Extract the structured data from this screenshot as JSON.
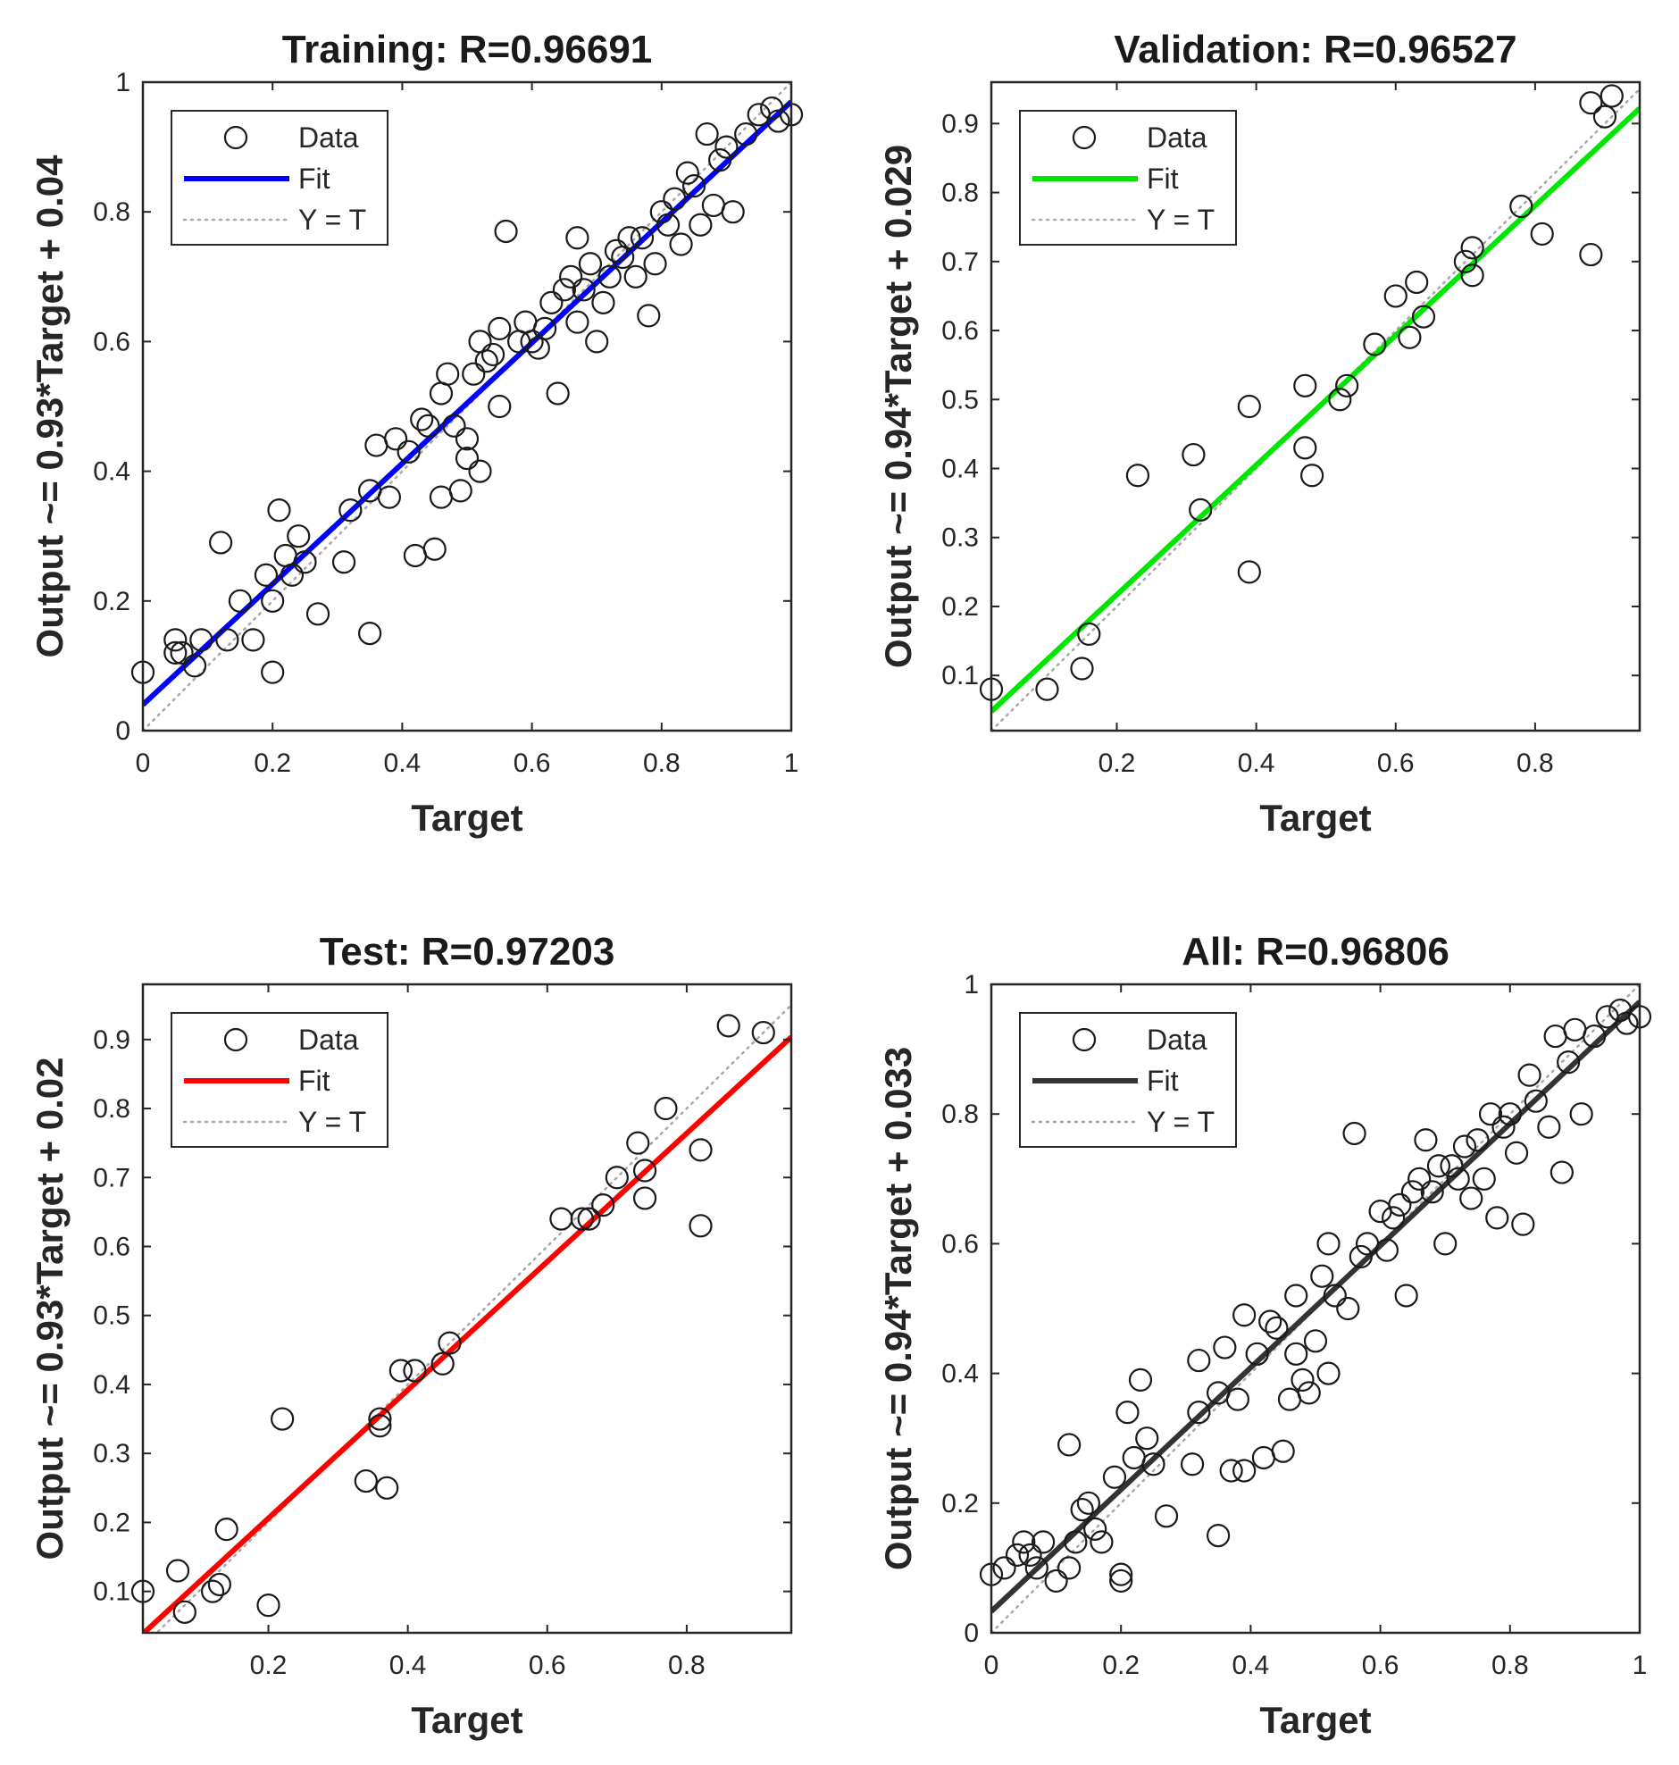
{
  "chart_data": [
    {
      "type": "scatter",
      "title": "Training: R=0.96691",
      "xlabel": "Target",
      "ylabel": "Output ~= 0.93*Target + 0.04",
      "xlim": [
        0,
        1
      ],
      "ylim": [
        0,
        1
      ],
      "xticks": [
        0,
        0.2,
        0.4,
        0.6,
        0.8,
        1
      ],
      "xtick_labels": [
        "0",
        "0.2",
        "0.4",
        "0.6",
        "0.8",
        "1"
      ],
      "yticks": [
        0,
        0.2,
        0.4,
        0.6,
        0.8,
        1
      ],
      "ytick_labels": [
        "0",
        "0.2",
        "0.4",
        "0.6",
        "0.8",
        "1"
      ],
      "fit": {
        "slope": 0.93,
        "intercept": 0.04,
        "color": "#0000ff"
      },
      "legend": {
        "position": "top-left",
        "entries": [
          "Data",
          "Fit",
          "Y = T"
        ]
      },
      "series": [
        {
          "name": "Data",
          "points": [
            [
              0.0,
              0.09
            ],
            [
              0.05,
              0.12
            ],
            [
              0.05,
              0.14
            ],
            [
              0.06,
              0.12
            ],
            [
              0.08,
              0.1
            ],
            [
              0.09,
              0.14
            ],
            [
              0.12,
              0.29
            ],
            [
              0.13,
              0.14
            ],
            [
              0.15,
              0.2
            ],
            [
              0.17,
              0.14
            ],
            [
              0.19,
              0.24
            ],
            [
              0.2,
              0.09
            ],
            [
              0.2,
              0.2
            ],
            [
              0.21,
              0.34
            ],
            [
              0.22,
              0.27
            ],
            [
              0.23,
              0.24
            ],
            [
              0.24,
              0.3
            ],
            [
              0.25,
              0.26
            ],
            [
              0.27,
              0.18
            ],
            [
              0.31,
              0.26
            ],
            [
              0.32,
              0.34
            ],
            [
              0.35,
              0.15
            ],
            [
              0.35,
              0.37
            ],
            [
              0.36,
              0.44
            ],
            [
              0.38,
              0.36
            ],
            [
              0.39,
              0.45
            ],
            [
              0.41,
              0.43
            ],
            [
              0.42,
              0.27
            ],
            [
              0.43,
              0.48
            ],
            [
              0.44,
              0.47
            ],
            [
              0.45,
              0.28
            ],
            [
              0.46,
              0.36
            ],
            [
              0.46,
              0.52
            ],
            [
              0.47,
              0.55
            ],
            [
              0.48,
              0.47
            ],
            [
              0.49,
              0.37
            ],
            [
              0.5,
              0.42
            ],
            [
              0.5,
              0.45
            ],
            [
              0.51,
              0.55
            ],
            [
              0.52,
              0.6
            ],
            [
              0.52,
              0.4
            ],
            [
              0.53,
              0.57
            ],
            [
              0.54,
              0.58
            ],
            [
              0.55,
              0.5
            ],
            [
              0.55,
              0.62
            ],
            [
              0.56,
              0.77
            ],
            [
              0.58,
              0.6
            ],
            [
              0.59,
              0.63
            ],
            [
              0.6,
              0.6
            ],
            [
              0.61,
              0.59
            ],
            [
              0.62,
              0.62
            ],
            [
              0.63,
              0.66
            ],
            [
              0.64,
              0.52
            ],
            [
              0.65,
              0.68
            ],
            [
              0.66,
              0.7
            ],
            [
              0.67,
              0.76
            ],
            [
              0.67,
              0.63
            ],
            [
              0.68,
              0.68
            ],
            [
              0.69,
              0.72
            ],
            [
              0.7,
              0.6
            ],
            [
              0.71,
              0.66
            ],
            [
              0.72,
              0.7
            ],
            [
              0.73,
              0.74
            ],
            [
              0.74,
              0.73
            ],
            [
              0.75,
              0.76
            ],
            [
              0.76,
              0.7
            ],
            [
              0.77,
              0.76
            ],
            [
              0.78,
              0.64
            ],
            [
              0.79,
              0.72
            ],
            [
              0.8,
              0.8
            ],
            [
              0.81,
              0.78
            ],
            [
              0.82,
              0.82
            ],
            [
              0.83,
              0.75
            ],
            [
              0.84,
              0.86
            ],
            [
              0.85,
              0.84
            ],
            [
              0.86,
              0.78
            ],
            [
              0.87,
              0.92
            ],
            [
              0.88,
              0.81
            ],
            [
              0.89,
              0.88
            ],
            [
              0.9,
              0.9
            ],
            [
              0.91,
              0.8
            ],
            [
              0.93,
              0.92
            ],
            [
              0.95,
              0.95
            ],
            [
              0.97,
              0.96
            ],
            [
              0.98,
              0.94
            ],
            [
              1.0,
              0.95
            ]
          ]
        }
      ]
    },
    {
      "type": "scatter",
      "title": "Validation: R=0.96527",
      "xlabel": "Target",
      "ylabel": "Output ~= 0.94*Target + 0.029",
      "xlim": [
        0.02,
        0.95
      ],
      "ylim": [
        0.02,
        0.96
      ],
      "xticks": [
        0.2,
        0.4,
        0.6,
        0.8
      ],
      "xtick_labels": [
        "0.2",
        "0.4",
        "0.6",
        "0.8"
      ],
      "yticks": [
        0.1,
        0.2,
        0.3,
        0.4,
        0.5,
        0.6,
        0.7,
        0.8,
        0.9
      ],
      "ytick_labels": [
        "0.1",
        "0.2",
        "0.3",
        "0.4",
        "0.5",
        "0.6",
        "0.7",
        "0.8",
        "0.9"
      ],
      "fit": {
        "slope": 0.94,
        "intercept": 0.029,
        "color": "#00e600"
      },
      "legend": {
        "position": "top-left",
        "entries": [
          "Data",
          "Fit",
          "Y = T"
        ]
      },
      "series": [
        {
          "name": "Data",
          "points": [
            [
              0.02,
              0.08
            ],
            [
              0.1,
              0.08
            ],
            [
              0.15,
              0.11
            ],
            [
              0.16,
              0.16
            ],
            [
              0.23,
              0.39
            ],
            [
              0.31,
              0.42
            ],
            [
              0.32,
              0.34
            ],
            [
              0.39,
              0.49
            ],
            [
              0.39,
              0.25
            ],
            [
              0.47,
              0.43
            ],
            [
              0.47,
              0.52
            ],
            [
              0.48,
              0.39
            ],
            [
              0.52,
              0.5
            ],
            [
              0.53,
              0.52
            ],
            [
              0.57,
              0.58
            ],
            [
              0.6,
              0.65
            ],
            [
              0.62,
              0.59
            ],
            [
              0.63,
              0.67
            ],
            [
              0.64,
              0.62
            ],
            [
              0.7,
              0.7
            ],
            [
              0.71,
              0.72
            ],
            [
              0.71,
              0.68
            ],
            [
              0.78,
              0.78
            ],
            [
              0.81,
              0.74
            ],
            [
              0.88,
              0.93
            ],
            [
              0.9,
              0.91
            ],
            [
              0.91,
              0.94
            ],
            [
              0.88,
              0.71
            ]
          ]
        }
      ]
    },
    {
      "type": "scatter",
      "title": "Test: R=0.97203",
      "xlabel": "Target",
      "ylabel": "Output ~= 0.93*Target + 0.02",
      "xlim": [
        0.02,
        0.95
      ],
      "ylim": [
        0.04,
        0.98
      ],
      "xticks": [
        0.2,
        0.4,
        0.6,
        0.8
      ],
      "xtick_labels": [
        "0.2",
        "0.4",
        "0.6",
        "0.8"
      ],
      "yticks": [
        0.1,
        0.2,
        0.3,
        0.4,
        0.5,
        0.6,
        0.7,
        0.8,
        0.9
      ],
      "ytick_labels": [
        "0.1",
        "0.2",
        "0.3",
        "0.4",
        "0.5",
        "0.6",
        "0.7",
        "0.8",
        "0.9"
      ],
      "fit": {
        "slope": 0.93,
        "intercept": 0.02,
        "color": "#ff0000"
      },
      "legend": {
        "position": "top-left",
        "entries": [
          "Data",
          "Fit",
          "Y = T"
        ]
      },
      "series": [
        {
          "name": "Data",
          "points": [
            [
              0.02,
              0.1
            ],
            [
              0.07,
              0.13
            ],
            [
              0.08,
              0.07
            ],
            [
              0.12,
              0.1
            ],
            [
              0.13,
              0.11
            ],
            [
              0.14,
              0.19
            ],
            [
              0.2,
              0.08
            ],
            [
              0.22,
              0.35
            ],
            [
              0.34,
              0.26
            ],
            [
              0.36,
              0.34
            ],
            [
              0.36,
              0.35
            ],
            [
              0.37,
              0.25
            ],
            [
              0.39,
              0.42
            ],
            [
              0.41,
              0.42
            ],
            [
              0.45,
              0.43
            ],
            [
              0.46,
              0.46
            ],
            [
              0.62,
              0.64
            ],
            [
              0.65,
              0.64
            ],
            [
              0.66,
              0.64
            ],
            [
              0.68,
              0.66
            ],
            [
              0.7,
              0.7
            ],
            [
              0.73,
              0.75
            ],
            [
              0.74,
              0.67
            ],
            [
              0.74,
              0.71
            ],
            [
              0.77,
              0.8
            ],
            [
              0.82,
              0.63
            ],
            [
              0.82,
              0.74
            ],
            [
              0.86,
              0.92
            ],
            [
              0.91,
              0.91
            ]
          ]
        }
      ]
    },
    {
      "type": "scatter",
      "title": "All: R=0.96806",
      "xlabel": "Target",
      "ylabel": "Output ~= 0.94*Target + 0.033",
      "xlim": [
        0,
        1
      ],
      "ylim": [
        0,
        1
      ],
      "xticks": [
        0,
        0.2,
        0.4,
        0.6,
        0.8,
        1
      ],
      "xtick_labels": [
        "0",
        "0.2",
        "0.4",
        "0.6",
        "0.8",
        "1"
      ],
      "yticks": [
        0,
        0.2,
        0.4,
        0.6,
        0.8,
        1
      ],
      "ytick_labels": [
        "0",
        "0.2",
        "0.4",
        "0.6",
        "0.8",
        "1"
      ],
      "fit": {
        "slope": 0.94,
        "intercept": 0.033,
        "color": "#333333"
      },
      "legend": {
        "position": "top-left",
        "entries": [
          "Data",
          "Fit",
          "Y = T"
        ]
      },
      "series": [
        {
          "name": "Data",
          "points": [
            [
              0.0,
              0.09
            ],
            [
              0.02,
              0.1
            ],
            [
              0.04,
              0.12
            ],
            [
              0.05,
              0.14
            ],
            [
              0.06,
              0.12
            ],
            [
              0.07,
              0.1
            ],
            [
              0.08,
              0.14
            ],
            [
              0.1,
              0.08
            ],
            [
              0.12,
              0.29
            ],
            [
              0.12,
              0.1
            ],
            [
              0.13,
              0.14
            ],
            [
              0.14,
              0.19
            ],
            [
              0.15,
              0.2
            ],
            [
              0.16,
              0.16
            ],
            [
              0.17,
              0.14
            ],
            [
              0.19,
              0.24
            ],
            [
              0.2,
              0.09
            ],
            [
              0.2,
              0.08
            ],
            [
              0.21,
              0.34
            ],
            [
              0.22,
              0.27
            ],
            [
              0.23,
              0.39
            ],
            [
              0.24,
              0.3
            ],
            [
              0.25,
              0.26
            ],
            [
              0.27,
              0.18
            ],
            [
              0.31,
              0.26
            ],
            [
              0.32,
              0.42
            ],
            [
              0.32,
              0.34
            ],
            [
              0.35,
              0.15
            ],
            [
              0.35,
              0.37
            ],
            [
              0.36,
              0.44
            ],
            [
              0.37,
              0.25
            ],
            [
              0.38,
              0.36
            ],
            [
              0.39,
              0.49
            ],
            [
              0.39,
              0.25
            ],
            [
              0.41,
              0.43
            ],
            [
              0.42,
              0.27
            ],
            [
              0.43,
              0.48
            ],
            [
              0.44,
              0.47
            ],
            [
              0.45,
              0.28
            ],
            [
              0.46,
              0.36
            ],
            [
              0.47,
              0.52
            ],
            [
              0.47,
              0.43
            ],
            [
              0.48,
              0.39
            ],
            [
              0.49,
              0.37
            ],
            [
              0.5,
              0.45
            ],
            [
              0.51,
              0.55
            ],
            [
              0.52,
              0.6
            ],
            [
              0.52,
              0.4
            ],
            [
              0.53,
              0.52
            ],
            [
              0.55,
              0.5
            ],
            [
              0.56,
              0.77
            ],
            [
              0.57,
              0.58
            ],
            [
              0.58,
              0.6
            ],
            [
              0.6,
              0.65
            ],
            [
              0.61,
              0.59
            ],
            [
              0.62,
              0.64
            ],
            [
              0.63,
              0.66
            ],
            [
              0.64,
              0.52
            ],
            [
              0.65,
              0.68
            ],
            [
              0.66,
              0.7
            ],
            [
              0.67,
              0.76
            ],
            [
              0.68,
              0.68
            ],
            [
              0.69,
              0.72
            ],
            [
              0.7,
              0.6
            ],
            [
              0.71,
              0.72
            ],
            [
              0.72,
              0.7
            ],
            [
              0.73,
              0.75
            ],
            [
              0.74,
              0.67
            ],
            [
              0.75,
              0.76
            ],
            [
              0.76,
              0.7
            ],
            [
              0.77,
              0.8
            ],
            [
              0.78,
              0.64
            ],
            [
              0.79,
              0.78
            ],
            [
              0.8,
              0.8
            ],
            [
              0.81,
              0.74
            ],
            [
              0.82,
              0.63
            ],
            [
              0.83,
              0.86
            ],
            [
              0.84,
              0.82
            ],
            [
              0.86,
              0.78
            ],
            [
              0.87,
              0.92
            ],
            [
              0.88,
              0.71
            ],
            [
              0.89,
              0.88
            ],
            [
              0.9,
              0.93
            ],
            [
              0.91,
              0.8
            ],
            [
              0.93,
              0.92
            ],
            [
              0.95,
              0.95
            ],
            [
              0.97,
              0.96
            ],
            [
              0.98,
              0.94
            ],
            [
              1.0,
              0.95
            ]
          ]
        }
      ]
    }
  ]
}
